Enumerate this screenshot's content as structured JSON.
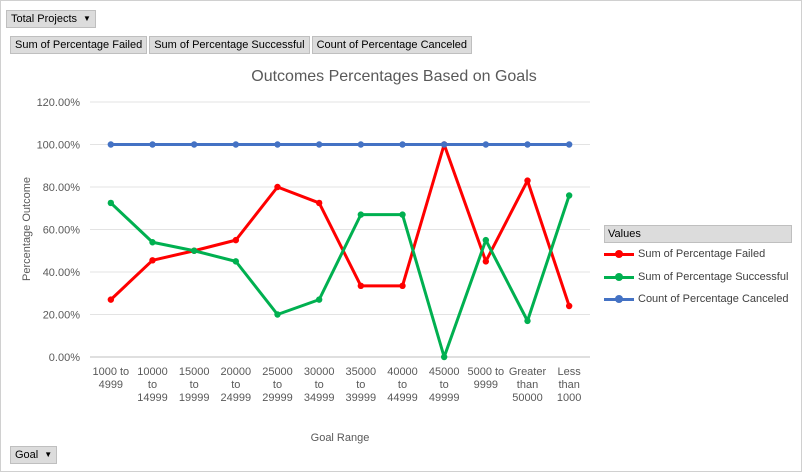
{
  "filters": {
    "report_filter_label": "Total Projects",
    "axis_field_label": "Goal"
  },
  "value_fields": [
    "Sum of Percentage Failed",
    "Sum of Percentage Successful",
    "Count of Percentage Canceled"
  ],
  "legend": {
    "title": "Values"
  },
  "chart_data": {
    "type": "line",
    "title": "Outcomes  Percentages Based on Goals",
    "xlabel": "Goal Range",
    "ylabel": "Percentage Outcome",
    "ylim": [
      0,
      1.2
    ],
    "y_ticks": [
      0,
      0.2,
      0.4,
      0.6,
      0.8,
      1.0,
      1.2
    ],
    "y_tick_labels": [
      "0.00%",
      "20.00%",
      "40.00%",
      "60.00%",
      "80.00%",
      "100.00%",
      "120.00%"
    ],
    "grid": true,
    "legend_position": "right",
    "categories": [
      [
        "1000 to",
        "4999"
      ],
      [
        "10000",
        "to",
        "14999"
      ],
      [
        "15000",
        "to",
        "19999"
      ],
      [
        "20000",
        "to",
        "24999"
      ],
      [
        "25000",
        "to",
        "29999"
      ],
      [
        "30000",
        "to",
        "34999"
      ],
      [
        "35000",
        "to",
        "39999"
      ],
      [
        "40000",
        "to",
        "44999"
      ],
      [
        "45000",
        "to",
        "49999"
      ],
      [
        "5000 to",
        "9999"
      ],
      [
        "Greater",
        "than",
        "50000"
      ],
      [
        "Less",
        "than",
        "1000"
      ]
    ],
    "series": [
      {
        "name": "Sum of Percentage Failed",
        "color": "#ff0000",
        "values": [
          0.27,
          0.455,
          0.5,
          0.55,
          0.8,
          0.725,
          0.335,
          0.335,
          1.0,
          0.45,
          0.83,
          0.24
        ]
      },
      {
        "name": "Sum of Percentage Successful",
        "color": "#00b050",
        "values": [
          0.725,
          0.54,
          0.5,
          0.45,
          0.2,
          0.27,
          0.67,
          0.67,
          0.0,
          0.55,
          0.17,
          0.76
        ]
      },
      {
        "name": "Count of Percentage Canceled",
        "color": "#4472c4",
        "values": [
          1.0,
          1.0,
          1.0,
          1.0,
          1.0,
          1.0,
          1.0,
          1.0,
          1.0,
          1.0,
          1.0,
          1.0
        ]
      }
    ]
  }
}
